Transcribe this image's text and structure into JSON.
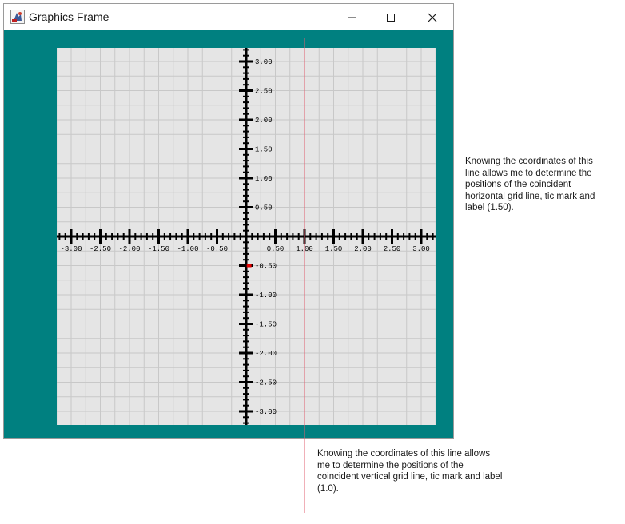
{
  "window": {
    "title": "Graphics Frame",
    "controls": [
      "minimize",
      "maximize",
      "close"
    ]
  },
  "plot": {
    "x_ticks": [
      -3.0,
      -2.5,
      -2.0,
      -1.5,
      -1.0,
      -0.5,
      0.5,
      1.0,
      1.5,
      2.0,
      2.5,
      3.0
    ],
    "y_ticks": [
      3.0,
      2.5,
      2.0,
      1.5,
      1.0,
      0.5,
      -0.5,
      -1.0,
      -1.5,
      -2.0,
      -2.5,
      -3.0
    ],
    "x_labels": [
      "-3.00",
      "-2.50",
      "-2.00",
      "-1.50",
      "-1.00",
      "-0.50",
      "0.50",
      "1.00",
      "1.50",
      "2.00",
      "2.50",
      "3.00"
    ],
    "y_labels": [
      "3.00",
      "2.50",
      "2.00",
      "1.50",
      "1.00",
      "0.50",
      "-0.50",
      "-1.00",
      "-1.50",
      "-2.00",
      "-2.50",
      "-3.00"
    ],
    "minor_tick_step": 0.1,
    "grid": true,
    "marker": {
      "x": 0.05,
      "y": -0.5,
      "color": "#e00000"
    },
    "colors": {
      "background": "#e5e5e5",
      "grid": "#c8c8c8",
      "axes": "#000000",
      "frame_background": "#008080"
    }
  },
  "annotations": {
    "horizontal_line": {
      "y_value": 1.5,
      "color": "#e06070",
      "text": "Knowing the coordinates of this line allows me to determine the positions of the coincident horizontal grid line, tic mark and label (1.50)."
    },
    "vertical_line": {
      "x_value": 1.0,
      "color": "#e06070",
      "text": "Knowing the coordinates of this line allows me to determine the positions of the coincident vertical grid line, tic mark and label (1.0)."
    }
  }
}
